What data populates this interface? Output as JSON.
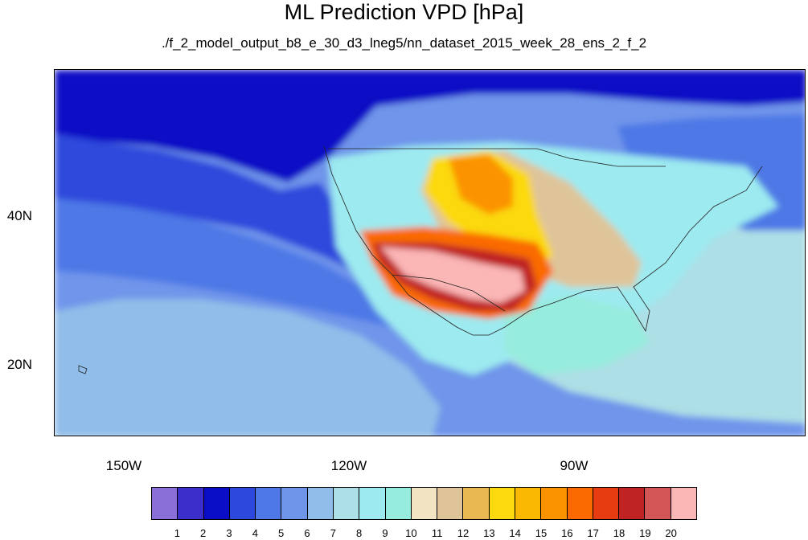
{
  "title": "ML Prediction VPD [hPa]",
  "subtitle": "./f_2_model_output_b8_e_30_d3_lneg5/nn_dataset_2015_week_28_ens_2_f_2",
  "map": {
    "projection": "cylindrical-equidistant",
    "lon_range": [
      -160,
      -60
    ],
    "lat_range": [
      10,
      59
    ],
    "variable": "VPD",
    "units": "hPa",
    "lat_labels": [
      "40N",
      "20N"
    ],
    "lon_labels": [
      "150W",
      "120W",
      "90W"
    ]
  },
  "colorbar": {
    "levels": [
      "1",
      "2",
      "3",
      "4",
      "5",
      "6",
      "7",
      "8",
      "9",
      "10",
      "11",
      "12",
      "13",
      "14",
      "15",
      "16",
      "17",
      "18",
      "19",
      "20"
    ],
    "colors": [
      "#8b6fd8",
      "#3c2ecb",
      "#0a0dc6",
      "#2d48dc",
      "#4e78e6",
      "#6f95ea",
      "#90bde9",
      "#addfe6",
      "#9deaf0",
      "#96ecdd",
      "#f2e4c3",
      "#dfc49a",
      "#e8b752",
      "#fbd90e",
      "#fbb800",
      "#fb9300",
      "#fa6a00",
      "#e73b12",
      "#bf2323",
      "#d35656",
      "#fbb6b6"
    ]
  }
}
